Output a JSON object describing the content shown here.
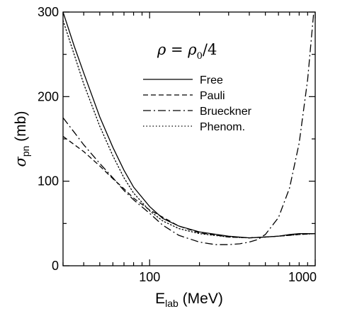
{
  "chart_data": {
    "type": "line",
    "x_scale": "log",
    "xlim": [
      30,
      1000
    ],
    "ylim": [
      0,
      300
    ],
    "x_ticks": [
      100,
      1000
    ],
    "x_tick_labels": [
      "100",
      "1000"
    ],
    "y_ticks": [
      0,
      100,
      200,
      300
    ],
    "y_tick_labels": [
      "0",
      "100",
      "200",
      "300"
    ],
    "xlabel": {
      "main": "E",
      "sub": "lab",
      "rest": " (MeV)"
    },
    "ylabel": {
      "main": "σ",
      "sub": "pn",
      "rest": " (mb)"
    },
    "annotation": {
      "left": "ρ = ρ",
      "sub": "0",
      "right": "/4"
    },
    "grid": false,
    "legend_position": "top-right inside",
    "series": [
      {
        "name": "Free",
        "dash": "solid",
        "points": [
          [
            30,
            300
          ],
          [
            35,
            260
          ],
          [
            40,
            228
          ],
          [
            50,
            176
          ],
          [
            60,
            140
          ],
          [
            70,
            113
          ],
          [
            80,
            93
          ],
          [
            100,
            70
          ],
          [
            120,
            56
          ],
          [
            150,
            47
          ],
          [
            200,
            40
          ],
          [
            300,
            35
          ],
          [
            400,
            33
          ],
          [
            500,
            34
          ],
          [
            600,
            35
          ],
          [
            700,
            37
          ],
          [
            800,
            38
          ],
          [
            1000,
            38
          ]
        ]
      },
      {
        "name": "Pauli",
        "dash": "dashed",
        "points": [
          [
            30,
            153
          ],
          [
            40,
            135
          ],
          [
            50,
            118
          ],
          [
            60,
            103
          ],
          [
            70,
            91
          ],
          [
            80,
            80
          ],
          [
            100,
            66
          ],
          [
            150,
            47
          ],
          [
            200,
            39
          ],
          [
            300,
            34
          ],
          [
            400,
            33
          ],
          [
            500,
            34
          ],
          [
            600,
            35
          ],
          [
            700,
            36
          ],
          [
            800,
            37
          ],
          [
            1000,
            38
          ]
        ]
      },
      {
        "name": "Brueckner",
        "dash": "dashdot",
        "points": [
          [
            30,
            175
          ],
          [
            35,
            158
          ],
          [
            40,
            143
          ],
          [
            50,
            121
          ],
          [
            60,
            104
          ],
          [
            70,
            89
          ],
          [
            80,
            78
          ],
          [
            100,
            62
          ],
          [
            120,
            48
          ],
          [
            150,
            36
          ],
          [
            200,
            28
          ],
          [
            250,
            25
          ],
          [
            300,
            25
          ],
          [
            350,
            26
          ],
          [
            400,
            28
          ],
          [
            450,
            31
          ],
          [
            500,
            37
          ],
          [
            600,
            57
          ],
          [
            700,
            92
          ],
          [
            800,
            145
          ],
          [
            900,
            220
          ],
          [
            980,
            300
          ]
        ]
      },
      {
        "name": "Phenom.",
        "dash": "dotted",
        "points": [
          [
            30,
            290
          ],
          [
            35,
            250
          ],
          [
            40,
            215
          ],
          [
            50,
            165
          ],
          [
            60,
            130
          ],
          [
            70,
            104
          ],
          [
            80,
            86
          ],
          [
            100,
            65
          ],
          [
            120,
            53
          ],
          [
            150,
            44
          ],
          [
            200,
            38
          ],
          [
            300,
            34
          ],
          [
            400,
            33
          ],
          [
            500,
            34
          ],
          [
            600,
            35
          ],
          [
            800,
            37
          ],
          [
            1000,
            38
          ]
        ]
      }
    ]
  }
}
